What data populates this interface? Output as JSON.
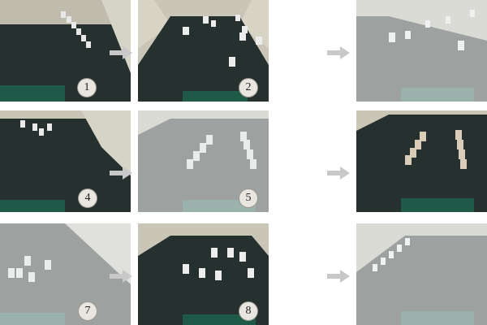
{
  "frames": [
    {
      "label": "1",
      "faded": false
    },
    {
      "label": "2",
      "faded": false
    },
    {
      "label": "",
      "faded": true
    },
    {
      "label": "4",
      "faded": false
    },
    {
      "label": "5",
      "faded": true
    },
    {
      "label": "",
      "faded": false
    },
    {
      "label": "7",
      "faded": true
    },
    {
      "label": "8",
      "faded": false
    },
    {
      "label": "",
      "faded": true
    }
  ],
  "colors": {
    "floor": "#26302f",
    "wall": "#c9c6b8",
    "mat": "#1f5a48",
    "arrow": "#c8c8c8",
    "badge": "#e9e6df"
  }
}
